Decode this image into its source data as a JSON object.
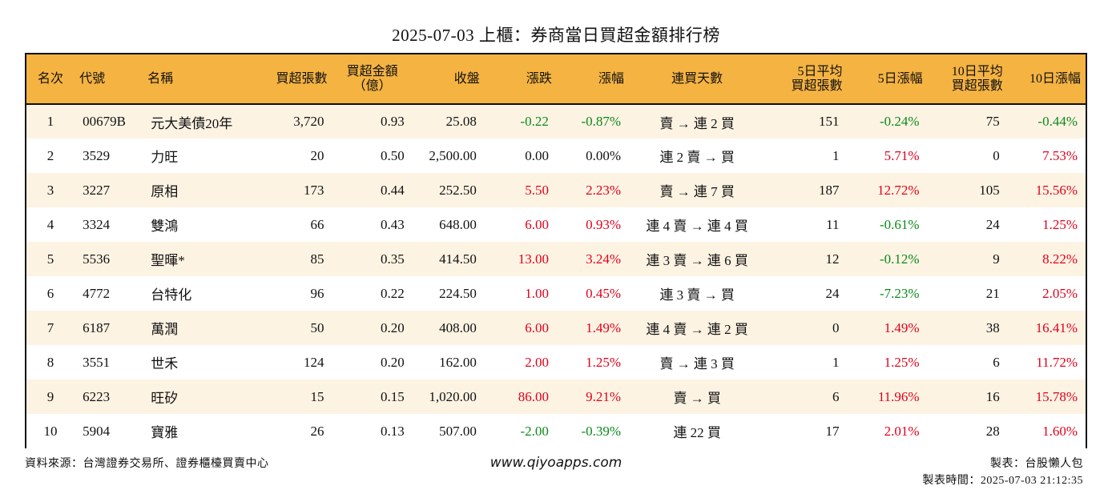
{
  "title": "2025-07-03 上櫃：券商當日買超金額排行榜",
  "headers": [
    {
      "line1": "名次",
      "line2": ""
    },
    {
      "line1": "代號",
      "line2": ""
    },
    {
      "line1": "名稱",
      "line2": ""
    },
    {
      "line1": "買超張數",
      "line2": ""
    },
    {
      "line1": "買超金額",
      "line2": "（億）"
    },
    {
      "line1": "收盤",
      "line2": ""
    },
    {
      "line1": "漲跌",
      "line2": ""
    },
    {
      "line1": "漲幅",
      "line2": ""
    },
    {
      "line1": "連買天數",
      "line2": ""
    },
    {
      "line1": "5日平均",
      "line2": "買超張數"
    },
    {
      "line1": "5日漲幅",
      "line2": ""
    },
    {
      "line1": "10日平均",
      "line2": "買超張數"
    },
    {
      "line1": "10日漲幅",
      "line2": ""
    }
  ],
  "rows": [
    {
      "rank": "1",
      "code": "00679B",
      "name": "元大美債20年",
      "buy_lots": "3,720",
      "buy_amount": "0.93",
      "close": "25.08",
      "change": "-0.22",
      "change_pct": "-0.87%",
      "streak": "賣 → 連 2 買",
      "avg5_lots": "151",
      "pct5": "-0.24%",
      "avg10_lots": "75",
      "pct10": "-0.44%"
    },
    {
      "rank": "2",
      "code": "3529",
      "name": "力旺",
      "buy_lots": "20",
      "buy_amount": "0.50",
      "close": "2,500.00",
      "change": "0.00",
      "change_pct": "0.00%",
      "streak": "連 2 賣 → 買",
      "avg5_lots": "1",
      "pct5": "5.71%",
      "avg10_lots": "0",
      "pct10": "7.53%"
    },
    {
      "rank": "3",
      "code": "3227",
      "name": "原相",
      "buy_lots": "173",
      "buy_amount": "0.44",
      "close": "252.50",
      "change": "5.50",
      "change_pct": "2.23%",
      "streak": "賣 → 連 7 買",
      "avg5_lots": "187",
      "pct5": "12.72%",
      "avg10_lots": "105",
      "pct10": "15.56%"
    },
    {
      "rank": "4",
      "code": "3324",
      "name": "雙鴻",
      "buy_lots": "66",
      "buy_amount": "0.43",
      "close": "648.00",
      "change": "6.00",
      "change_pct": "0.93%",
      "streak": "連 4 賣 → 連 4 買",
      "avg5_lots": "11",
      "pct5": "-0.61%",
      "avg10_lots": "24",
      "pct10": "1.25%"
    },
    {
      "rank": "5",
      "code": "5536",
      "name": "聖暉*",
      "buy_lots": "85",
      "buy_amount": "0.35",
      "close": "414.50",
      "change": "13.00",
      "change_pct": "3.24%",
      "streak": "連 3 賣 → 連 6 買",
      "avg5_lots": "12",
      "pct5": "-0.12%",
      "avg10_lots": "9",
      "pct10": "8.22%"
    },
    {
      "rank": "6",
      "code": "4772",
      "name": "台特化",
      "buy_lots": "96",
      "buy_amount": "0.22",
      "close": "224.50",
      "change": "1.00",
      "change_pct": "0.45%",
      "streak": "連 3 賣 → 買",
      "avg5_lots": "24",
      "pct5": "-7.23%",
      "avg10_lots": "21",
      "pct10": "2.05%"
    },
    {
      "rank": "7",
      "code": "6187",
      "name": "萬潤",
      "buy_lots": "50",
      "buy_amount": "0.20",
      "close": "408.00",
      "change": "6.00",
      "change_pct": "1.49%",
      "streak": "連 4 賣 → 連 2 買",
      "avg5_lots": "0",
      "pct5": "1.49%",
      "avg10_lots": "38",
      "pct10": "16.41%"
    },
    {
      "rank": "8",
      "code": "3551",
      "name": "世禾",
      "buy_lots": "124",
      "buy_amount": "0.20",
      "close": "162.00",
      "change": "2.00",
      "change_pct": "1.25%",
      "streak": "賣 → 連 3 買",
      "avg5_lots": "1",
      "pct5": "1.25%",
      "avg10_lots": "6",
      "pct10": "11.72%"
    },
    {
      "rank": "9",
      "code": "6223",
      "name": "旺矽",
      "buy_lots": "15",
      "buy_amount": "0.15",
      "close": "1,020.00",
      "change": "86.00",
      "change_pct": "9.21%",
      "streak": "賣 → 買",
      "avg5_lots": "6",
      "pct5": "11.96%",
      "avg10_lots": "16",
      "pct10": "15.78%"
    },
    {
      "rank": "10",
      "code": "5904",
      "name": "寶雅",
      "buy_lots": "26",
      "buy_amount": "0.13",
      "close": "507.00",
      "change": "-2.00",
      "change_pct": "-0.39%",
      "streak": "連 22 買",
      "avg5_lots": "17",
      "pct5": "2.01%",
      "avg10_lots": "28",
      "pct10": "1.60%"
    }
  ],
  "footer": {
    "source": "資料來源：台灣證券交易所、證券櫃檯買賣中心",
    "website": "www.qiyoapps.com",
    "author": "製表：台股懶人包",
    "made_time": "製表時間：2025-07-03 21:12:35"
  },
  "colors": {
    "header_bg": "#f5b342",
    "stripe_bg": "#fdf3e3",
    "up": "#e0001b",
    "down": "#0a8a1a"
  }
}
